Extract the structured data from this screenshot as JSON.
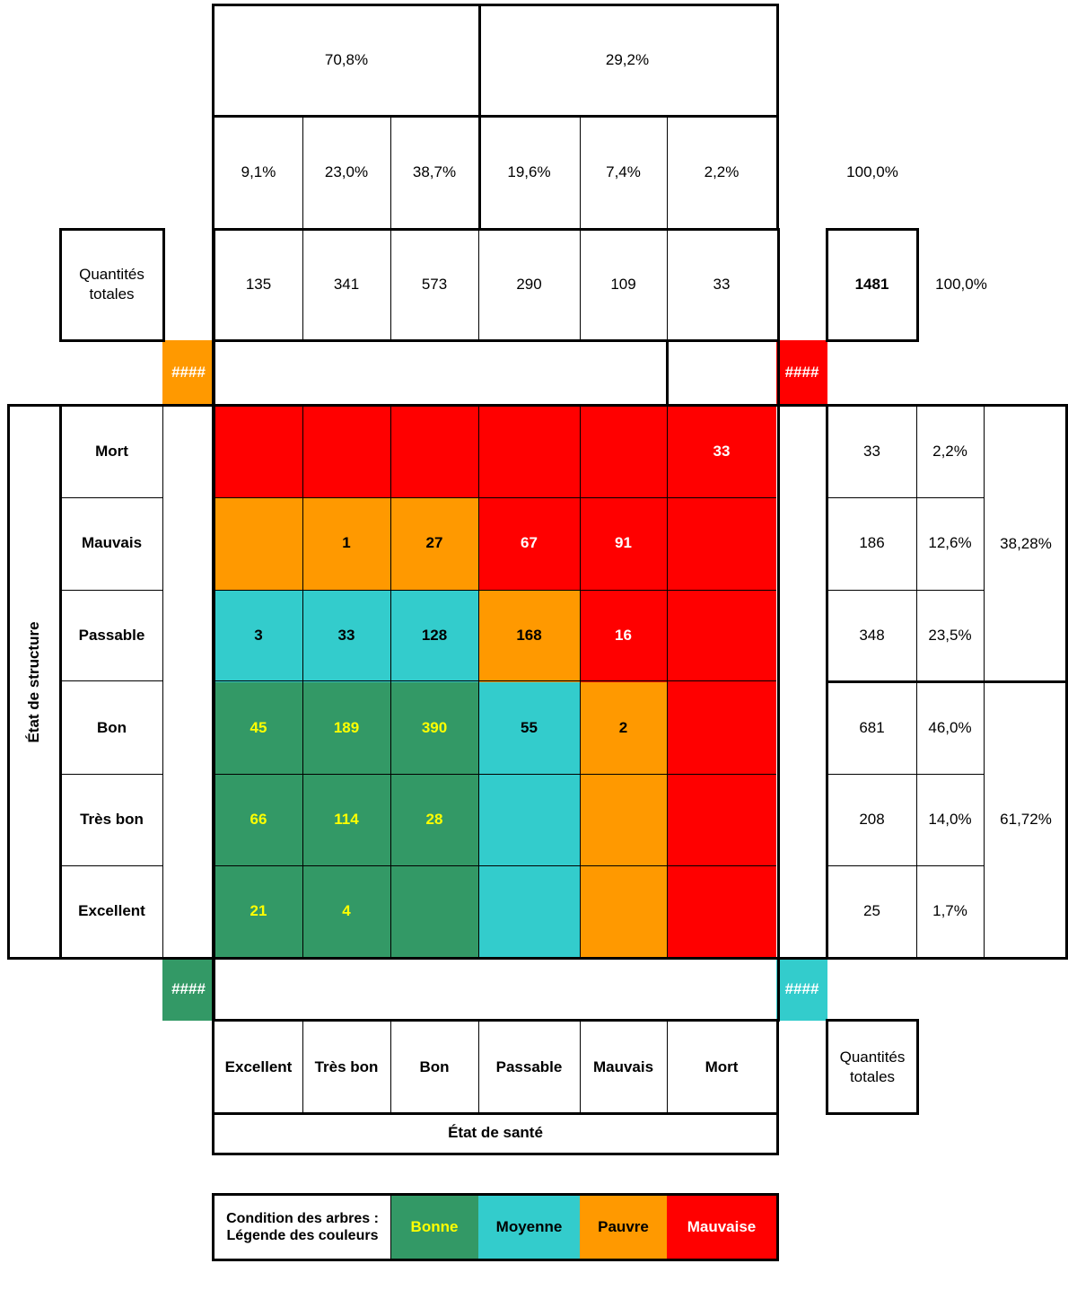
{
  "chart_data": {
    "type": "table",
    "title": "",
    "colors": {
      "bonne": "#339966",
      "moyenne": "#33CCCC",
      "pauvre": "#FF9900",
      "mauvaise": "#FF0000",
      "yellow_text": "#FFFF00",
      "white_text": "#FFFFFF",
      "black_text": "#000000"
    },
    "health_axis_label": "État de santé",
    "structure_axis_label": "État de structure",
    "health_levels": [
      "Excellent",
      "Très bon",
      "Bon",
      "Passable",
      "Mauvais",
      "Mort"
    ],
    "structure_levels": [
      "Mort",
      "Mauvais",
      "Passable",
      "Bon",
      "Très bon",
      "Excellent"
    ],
    "health_group_pcts": [
      "70,8%",
      "29,2%"
    ],
    "health_pcts": [
      "9,1%",
      "23,0%",
      "38,7%",
      "19,6%",
      "7,4%",
      "2,2%"
    ],
    "health_pct_total": "100,0%",
    "totals_label": "Quantités totales",
    "health_totals": [
      "135",
      "341",
      "573",
      "290",
      "109",
      "33"
    ],
    "grand_total": "1481",
    "grand_total_pct": "100,0%",
    "hash_marks": [
      "####",
      "####",
      "####",
      "####"
    ],
    "cells": [
      [
        {
          "v": "",
          "cond": "mauvaise"
        },
        {
          "v": "",
          "cond": "mauvaise"
        },
        {
          "v": "",
          "cond": "mauvaise"
        },
        {
          "v": "",
          "cond": "mauvaise"
        },
        {
          "v": "",
          "cond": "mauvaise"
        },
        {
          "v": "33",
          "cond": "mauvaise"
        }
      ],
      [
        {
          "v": "",
          "cond": "pauvre"
        },
        {
          "v": "1",
          "cond": "pauvre"
        },
        {
          "v": "27",
          "cond": "pauvre"
        },
        {
          "v": "67",
          "cond": "mauvaise"
        },
        {
          "v": "91",
          "cond": "mauvaise"
        },
        {
          "v": "",
          "cond": "mauvaise"
        }
      ],
      [
        {
          "v": "3",
          "cond": "moyenne"
        },
        {
          "v": "33",
          "cond": "moyenne"
        },
        {
          "v": "128",
          "cond": "moyenne"
        },
        {
          "v": "168",
          "cond": "pauvre"
        },
        {
          "v": "16",
          "cond": "mauvaise"
        },
        {
          "v": "",
          "cond": "mauvaise"
        }
      ],
      [
        {
          "v": "45",
          "cond": "bonne"
        },
        {
          "v": "189",
          "cond": "bonne"
        },
        {
          "v": "390",
          "cond": "bonne"
        },
        {
          "v": "55",
          "cond": "moyenne"
        },
        {
          "v": "2",
          "cond": "pauvre"
        },
        {
          "v": "",
          "cond": "mauvaise"
        }
      ],
      [
        {
          "v": "66",
          "cond": "bonne"
        },
        {
          "v": "114",
          "cond": "bonne"
        },
        {
          "v": "28",
          "cond": "bonne"
        },
        {
          "v": "",
          "cond": "moyenne"
        },
        {
          "v": "",
          "cond": "pauvre"
        },
        {
          "v": "",
          "cond": "mauvaise"
        }
      ],
      [
        {
          "v": "21",
          "cond": "bonne"
        },
        {
          "v": "4",
          "cond": "bonne"
        },
        {
          "v": "",
          "cond": "bonne"
        },
        {
          "v": "",
          "cond": "moyenne"
        },
        {
          "v": "",
          "cond": "pauvre"
        },
        {
          "v": "",
          "cond": "mauvaise"
        }
      ]
    ],
    "row_totals": [
      "33",
      "186",
      "348",
      "681",
      "208",
      "25"
    ],
    "row_pcts": [
      "2,2%",
      "12,6%",
      "23,5%",
      "46,0%",
      "14,0%",
      "1,7%"
    ],
    "row_group_pcts": [
      "38,28%",
      "61,72%"
    ],
    "legend": {
      "title": "Condition des arbres : Légende des couleurs",
      "items": [
        {
          "label": "Bonne",
          "cond": "bonne"
        },
        {
          "label": "Moyenne",
          "cond": "moyenne"
        },
        {
          "label": "Pauvre",
          "cond": "pauvre"
        },
        {
          "label": "Mauvaise",
          "cond": "mauvaise"
        }
      ]
    }
  }
}
